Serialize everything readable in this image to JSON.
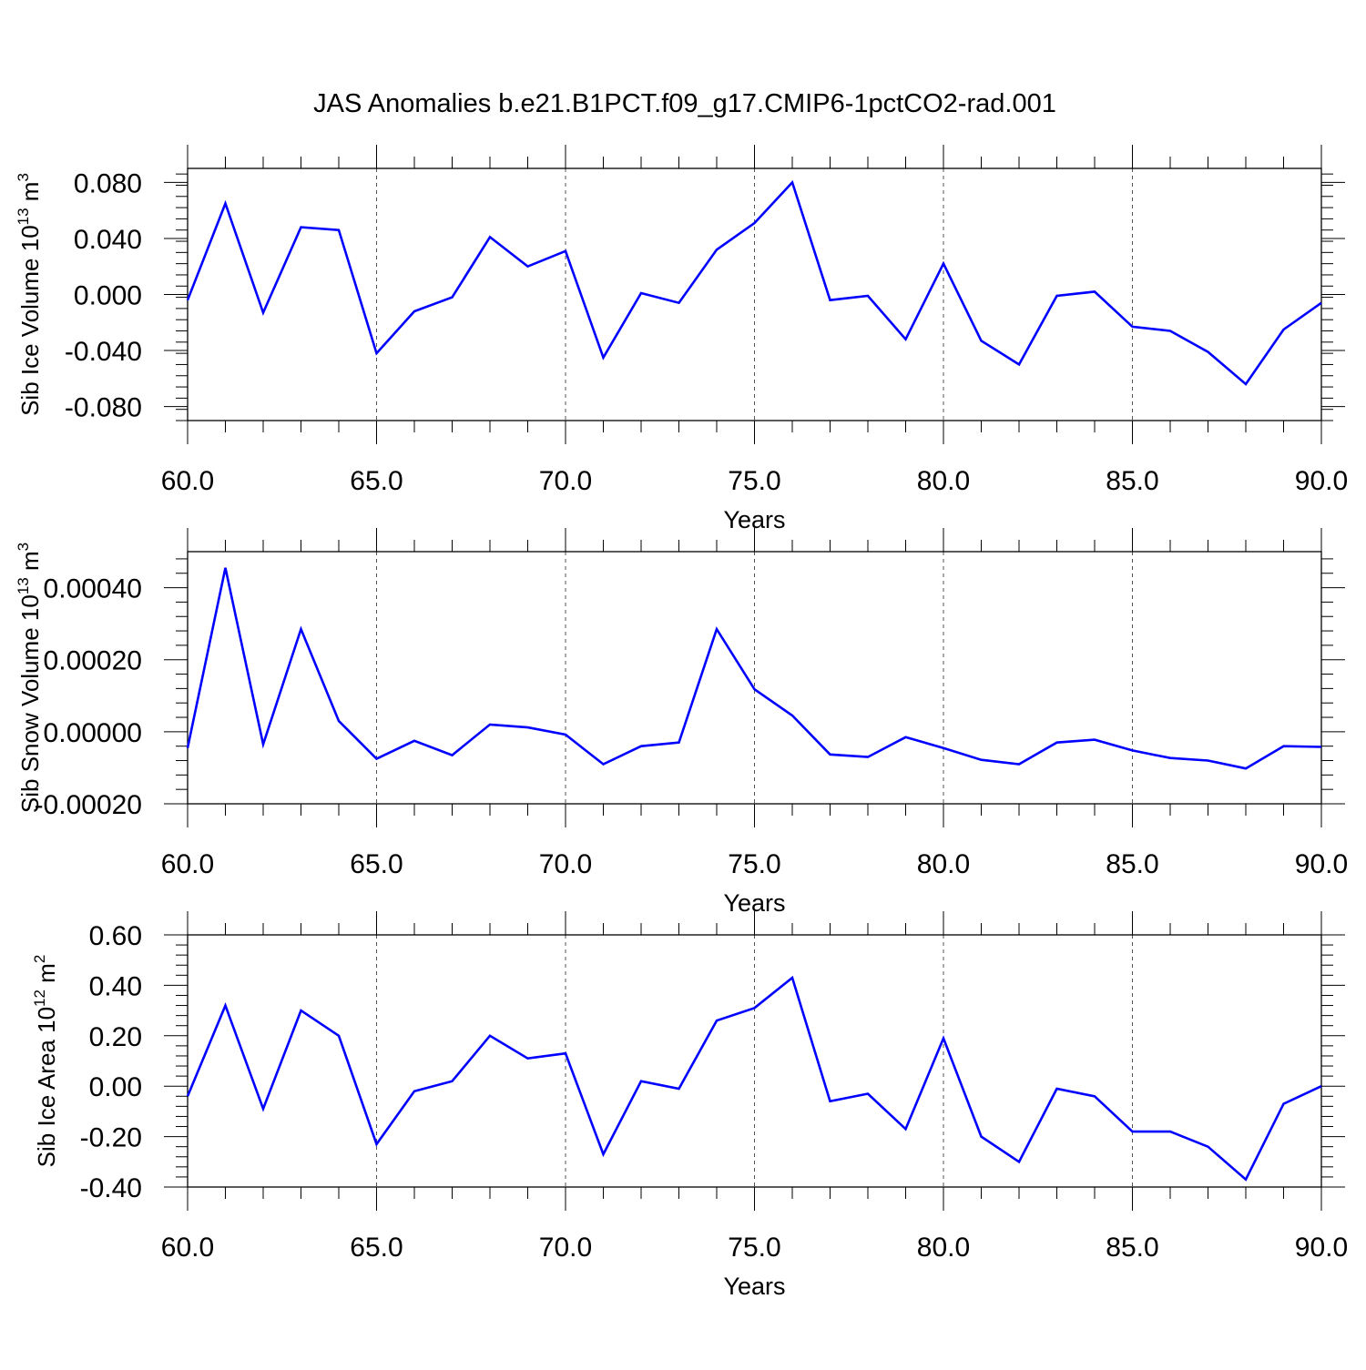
{
  "figure": {
    "title": "JAS Anomalies b.e21.B1PCT.f09_g17.CMIP6-1pctCO2-rad.001"
  },
  "chart_data": [
    {
      "type": "line",
      "title": "",
      "xlabel": "Years",
      "ylabel_main": "Sib Ice Volume 10",
      "ylabel_exp": "13",
      "ylabel_unit": " m",
      "ylabel_unit_exp": "3",
      "xlim": [
        60,
        90
      ],
      "ylim": [
        -0.09,
        0.09
      ],
      "xticks": [
        "60.0",
        "65.0",
        "70.0",
        "75.0",
        "80.0",
        "85.0",
        "90.0"
      ],
      "yticks": [
        0.08,
        0.04,
        0.0,
        -0.04,
        -0.08
      ],
      "ytick_labels": [
        "0.080",
        "0.040",
        "0.000",
        "-0.040",
        "-0.080"
      ],
      "grid": "vertical dashed at major x ticks",
      "color": "#0000ff",
      "x": [
        60,
        61,
        62,
        63,
        64,
        65,
        66,
        67,
        68,
        69,
        70,
        71,
        72,
        73,
        74,
        75,
        76,
        77,
        78,
        79,
        80,
        81,
        82,
        83,
        84,
        85,
        86,
        87,
        88,
        89,
        90
      ],
      "y": [
        -0.004,
        0.065,
        -0.013,
        0.048,
        0.046,
        -0.042,
        -0.012,
        -0.002,
        0.041,
        0.02,
        0.031,
        -0.045,
        0.001,
        -0.006,
        0.032,
        0.051,
        0.08,
        -0.004,
        -0.001,
        -0.032,
        0.022,
        -0.033,
        -0.05,
        -0.001,
        0.002,
        -0.023,
        -0.026,
        -0.041,
        -0.064,
        -0.025,
        -0.006
      ]
    },
    {
      "type": "line",
      "title": "",
      "xlabel": "Years",
      "ylabel_main": "Sib Snow Volume 10",
      "ylabel_exp": "13",
      "ylabel_unit": " m",
      "ylabel_unit_exp": "3",
      "xlim": [
        60,
        90
      ],
      "ylim": [
        -0.0002,
        0.0005
      ],
      "xticks": [
        "60.0",
        "65.0",
        "70.0",
        "75.0",
        "80.0",
        "85.0",
        "90.0"
      ],
      "yticks": [
        0.0004,
        0.0002,
        0.0,
        -0.0002
      ],
      "ytick_labels": [
        "0.00040",
        "0.00020",
        "0.00000",
        "-0.00020"
      ],
      "grid": "vertical dashed at major x ticks",
      "color": "#0000ff",
      "x": [
        60,
        61,
        62,
        63,
        64,
        65,
        66,
        67,
        68,
        69,
        70,
        71,
        72,
        73,
        74,
        75,
        76,
        77,
        78,
        79,
        80,
        81,
        82,
        83,
        84,
        85,
        86,
        87,
        88,
        89,
        90
      ],
      "y": [
        -4.5e-05,
        0.000455,
        -3.5e-05,
        0.000285,
        3e-05,
        -7.5e-05,
        -2.5e-05,
        -6.5e-05,
        2e-05,
        1.2e-05,
        -8e-06,
        -9e-05,
        -4e-05,
        -3e-05,
        0.000285,
        0.000118,
        4.5e-05,
        -6.3e-05,
        -7e-05,
        -1.5e-05,
        -4.5e-05,
        -7.8e-05,
        -9e-05,
        -3e-05,
        -2.2e-05,
        -5.2e-05,
        -7.3e-05,
        -8e-05,
        -0.000102,
        -4e-05,
        -4.2e-05
      ]
    },
    {
      "type": "line",
      "title": "",
      "xlabel": "Years",
      "ylabel_main": "Sib Ice Area 10",
      "ylabel_exp": "12",
      "ylabel_unit": " m",
      "ylabel_unit_exp": "2",
      "xlim": [
        60,
        90
      ],
      "ylim": [
        -0.4,
        0.6
      ],
      "xticks": [
        "60.0",
        "65.0",
        "70.0",
        "75.0",
        "80.0",
        "85.0",
        "90.0"
      ],
      "yticks": [
        0.6,
        0.4,
        0.2,
        0.0,
        -0.2,
        -0.4
      ],
      "ytick_labels": [
        "0.60",
        "0.40",
        "0.20",
        "0.00",
        "-0.20",
        "-0.40"
      ],
      "grid": "vertical dashed at major x ticks",
      "color": "#0000ff",
      "x": [
        60,
        61,
        62,
        63,
        64,
        65,
        66,
        67,
        68,
        69,
        70,
        71,
        72,
        73,
        74,
        75,
        76,
        77,
        78,
        79,
        80,
        81,
        82,
        83,
        84,
        85,
        86,
        87,
        88,
        89,
        90
      ],
      "y": [
        -0.04,
        0.32,
        -0.09,
        0.3,
        0.2,
        -0.23,
        -0.02,
        0.02,
        0.2,
        0.11,
        0.13,
        -0.27,
        0.02,
        -0.01,
        0.26,
        0.31,
        0.43,
        -0.06,
        -0.03,
        -0.17,
        0.19,
        -0.2,
        -0.3,
        -0.01,
        -0.04,
        -0.18,
        -0.18,
        -0.24,
        -0.37,
        -0.07,
        0.0
      ]
    }
  ]
}
